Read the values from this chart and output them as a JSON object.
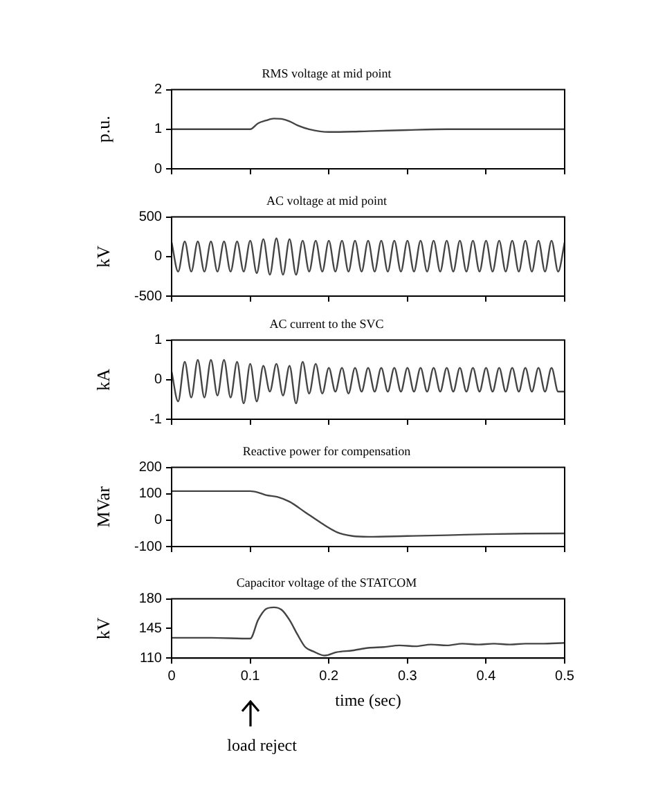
{
  "chart_data": [
    {
      "type": "line",
      "title": "RMS voltage at mid point",
      "ylabel": "p.u.",
      "color": "#444444",
      "marker": "none",
      "line_style": "solid",
      "grid": false,
      "tick_labels": "y",
      "xlim": [
        0,
        0.5
      ],
      "xticks": [
        0,
        0.1,
        0.2,
        0.3,
        0.4,
        0.5
      ],
      "ylim": [
        0,
        2
      ],
      "yticks": [
        0,
        1,
        2
      ],
      "x": [
        0,
        0.05,
        0.1,
        0.11,
        0.12,
        0.13,
        0.14,
        0.15,
        0.16,
        0.175,
        0.2,
        0.25,
        0.3,
        0.35,
        0.4,
        0.45,
        0.5
      ],
      "values": [
        1,
        1,
        1,
        1.15,
        1.22,
        1.27,
        1.26,
        1.2,
        1.1,
        1.0,
        0.93,
        0.95,
        0.98,
        1.0,
        1.0,
        1.0,
        1.0
      ]
    },
    {
      "type": "line",
      "title": "AC voltage at mid point",
      "ylabel": "kV",
      "color": "#444444",
      "marker": "none",
      "line_style": "solid",
      "grid": false,
      "tick_labels": "y",
      "xlim": [
        0,
        0.5
      ],
      "xticks": [
        0,
        0.1,
        0.2,
        0.3,
        0.4,
        0.5
      ],
      "ylim": [
        -500,
        500
      ],
      "yticks": [
        -500,
        0,
        500
      ],
      "x": [
        0,
        0.0083,
        0.0167,
        0.025,
        0.0333,
        0.0417,
        0.05,
        0.0583,
        0.0667,
        0.075,
        0.0833,
        0.0917,
        0.1,
        0.1083,
        0.1167,
        0.125,
        0.1333,
        0.1417,
        0.15,
        0.1583,
        0.1667,
        0.175,
        0.1833,
        0.1917,
        0.2,
        0.2083,
        0.2167,
        0.225,
        0.2333,
        0.2417,
        0.25,
        0.2583,
        0.2667,
        0.275,
        0.2833,
        0.2917,
        0.3,
        0.3083,
        0.3167,
        0.325,
        0.3333,
        0.3417,
        0.35,
        0.3583,
        0.3667,
        0.375,
        0.3833,
        0.3917,
        0.4,
        0.4083,
        0.4167,
        0.425,
        0.4333,
        0.4417,
        0.45,
        0.4583,
        0.4667,
        0.475,
        0.4833,
        0.4917,
        0.5
      ],
      "values": [
        180,
        -190,
        190,
        -190,
        190,
        -190,
        190,
        -190,
        190,
        -190,
        190,
        -190,
        200,
        -210,
        220,
        -230,
        230,
        -230,
        220,
        -230,
        200,
        -190,
        200,
        -190,
        200,
        -190,
        200,
        -190,
        200,
        -190,
        200,
        -190,
        200,
        -190,
        200,
        -190,
        200,
        -190,
        200,
        -190,
        200,
        -190,
        200,
        -190,
        200,
        -190,
        200,
        -190,
        200,
        -190,
        200,
        -190,
        200,
        -190,
        200,
        -190,
        200,
        -190,
        200,
        -190,
        180
      ]
    },
    {
      "type": "line",
      "title": "AC current to the SVC",
      "ylabel": "kA",
      "color": "#444444",
      "marker": "none",
      "line_style": "solid",
      "grid": false,
      "tick_labels": "y",
      "xlim": [
        0,
        0.5
      ],
      "xticks": [
        0,
        0.1,
        0.2,
        0.3,
        0.4,
        0.5
      ],
      "ylim": [
        -1,
        1
      ],
      "yticks": [
        -1,
        0,
        1
      ],
      "x": [
        0,
        0.0083,
        0.0167,
        0.025,
        0.0333,
        0.0417,
        0.05,
        0.0583,
        0.0667,
        0.075,
        0.0833,
        0.0917,
        0.1,
        0.1083,
        0.1167,
        0.125,
        0.1333,
        0.1417,
        0.15,
        0.1583,
        0.1667,
        0.175,
        0.1833,
        0.1917,
        0.2,
        0.2083,
        0.2167,
        0.225,
        0.2333,
        0.2417,
        0.25,
        0.2583,
        0.2667,
        0.275,
        0.2833,
        0.2917,
        0.3,
        0.3083,
        0.3167,
        0.325,
        0.3333,
        0.3417,
        0.35,
        0.3583,
        0.3667,
        0.375,
        0.3833,
        0.3917,
        0.4,
        0.4083,
        0.4167,
        0.425,
        0.4333,
        0.4417,
        0.45,
        0.4583,
        0.4667,
        0.475,
        0.4833,
        0.4917,
        0.5
      ],
      "values": [
        0.2,
        -0.55,
        0.45,
        -0.45,
        0.5,
        -0.45,
        0.5,
        -0.4,
        0.5,
        -0.45,
        0.45,
        -0.6,
        0.4,
        -0.55,
        0.35,
        -0.3,
        0.4,
        -0.4,
        0.35,
        -0.6,
        0.45,
        -0.35,
        0.4,
        -0.35,
        0.3,
        -0.3,
        0.3,
        -0.35,
        0.3,
        -0.3,
        0.3,
        -0.3,
        0.3,
        -0.3,
        0.3,
        -0.3,
        0.3,
        -0.3,
        0.3,
        -0.3,
        0.3,
        -0.3,
        0.3,
        -0.3,
        0.3,
        -0.3,
        0.3,
        -0.3,
        0.3,
        -0.3,
        0.3,
        -0.3,
        0.3,
        -0.3,
        0.3,
        -0.3,
        0.3,
        -0.3,
        0.3,
        -0.3,
        -0.3
      ]
    },
    {
      "type": "line",
      "title": "Reactive power for compensation",
      "ylabel": "MVar",
      "color": "#444444",
      "marker": "none",
      "line_style": "solid",
      "grid": false,
      "tick_labels": "y",
      "xlim": [
        0,
        0.5
      ],
      "xticks": [
        0,
        0.1,
        0.2,
        0.3,
        0.4,
        0.5
      ],
      "ylim": [
        -100,
        200
      ],
      "yticks": [
        -100,
        0,
        100,
        200
      ],
      "x": [
        0,
        0.05,
        0.1,
        0.11,
        0.12,
        0.135,
        0.15,
        0.17,
        0.19,
        0.21,
        0.23,
        0.25,
        0.3,
        0.35,
        0.4,
        0.45,
        0.5
      ],
      "values": [
        110,
        110,
        110,
        105,
        95,
        88,
        70,
        30,
        -10,
        -45,
        -60,
        -63,
        -60,
        -57,
        -53,
        -51,
        -50
      ]
    },
    {
      "type": "line",
      "title": "Capacitor voltage of the STATCOM",
      "ylabel": "kV",
      "xlabel": "time (sec)",
      "color": "#444444",
      "marker": "none",
      "line_style": "solid",
      "grid": false,
      "xlim": [
        0,
        0.5
      ],
      "xticks": [
        0,
        0.1,
        0.2,
        0.3,
        0.4,
        0.5
      ],
      "ylim": [
        110,
        180
      ],
      "yticks": [
        110,
        145,
        180
      ],
      "annotations": [
        "load reject"
      ],
      "x": [
        0,
        0.05,
        0.1,
        0.11,
        0.12,
        0.13,
        0.14,
        0.15,
        0.16,
        0.17,
        0.18,
        0.195,
        0.21,
        0.23,
        0.25,
        0.27,
        0.29,
        0.31,
        0.33,
        0.35,
        0.37,
        0.39,
        0.41,
        0.43,
        0.45,
        0.47,
        0.5
      ],
      "values": [
        134,
        134,
        133,
        155,
        168,
        170,
        167,
        155,
        138,
        123,
        118,
        113,
        117,
        119,
        122,
        123,
        125,
        124,
        126,
        125,
        127,
        126,
        127,
        126,
        127,
        127,
        128
      ]
    }
  ]
}
